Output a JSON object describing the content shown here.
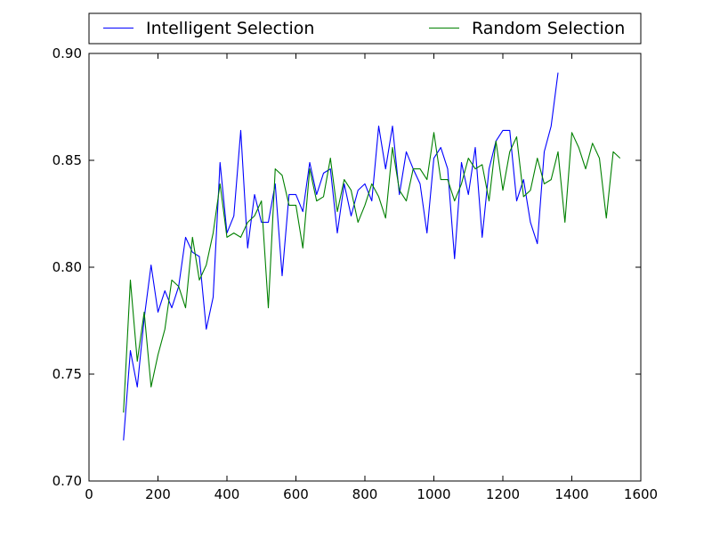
{
  "chart_data": {
    "type": "line",
    "title": "",
    "xlabel": "",
    "ylabel": "",
    "xlim": [
      0,
      1600
    ],
    "ylim": [
      0.7,
      0.9
    ],
    "x_ticks": [
      0,
      200,
      400,
      600,
      800,
      1000,
      1200,
      1400,
      1600
    ],
    "y_ticks": [
      0.7,
      0.75,
      0.8,
      0.85,
      0.9
    ],
    "x_tick_labels": [
      "0",
      "200",
      "400",
      "600",
      "800",
      "1000",
      "1200",
      "1400",
      "1600"
    ],
    "y_tick_labels": [
      "0.70",
      "0.75",
      "0.80",
      "0.85",
      "0.90"
    ],
    "grid": false,
    "legend_position": "top-outside",
    "series": [
      {
        "name": "Intelligent Selection",
        "color": "#0000ff",
        "x": [
          100,
          120,
          140,
          160,
          180,
          200,
          220,
          240,
          260,
          280,
          300,
          320,
          340,
          360,
          380,
          400,
          420,
          440,
          460,
          480,
          500,
          520,
          540,
          560,
          580,
          600,
          620,
          640,
          660,
          680,
          700,
          720,
          740,
          760,
          780,
          800,
          820,
          840,
          860,
          880,
          900,
          920,
          940,
          960,
          980,
          1000,
          1020,
          1040,
          1060,
          1080,
          1100,
          1120,
          1140,
          1160,
          1180,
          1200,
          1220,
          1240,
          1260,
          1280,
          1300,
          1320,
          1340,
          1360
        ],
        "y": [
          0.719,
          0.761,
          0.744,
          0.776,
          0.801,
          0.779,
          0.789,
          0.781,
          0.791,
          0.814,
          0.807,
          0.805,
          0.771,
          0.786,
          0.849,
          0.816,
          0.824,
          0.864,
          0.809,
          0.834,
          0.821,
          0.821,
          0.839,
          0.796,
          0.834,
          0.834,
          0.826,
          0.849,
          0.834,
          0.844,
          0.846,
          0.816,
          0.839,
          0.824,
          0.836,
          0.839,
          0.831,
          0.866,
          0.846,
          0.866,
          0.834,
          0.854,
          0.846,
          0.839,
          0.816,
          0.851,
          0.856,
          0.846,
          0.804,
          0.849,
          0.834,
          0.856,
          0.814,
          0.846,
          0.859,
          0.864,
          0.864,
          0.831,
          0.841,
          0.821,
          0.811,
          0.854,
          0.866,
          0.891
        ]
      },
      {
        "name": "Random Selection",
        "color": "#008000",
        "x": [
          100,
          120,
          140,
          160,
          180,
          200,
          220,
          240,
          260,
          280,
          300,
          320,
          340,
          360,
          380,
          400,
          420,
          440,
          460,
          480,
          500,
          520,
          540,
          560,
          580,
          600,
          620,
          640,
          660,
          680,
          700,
          720,
          740,
          760,
          780,
          800,
          820,
          840,
          860,
          880,
          900,
          920,
          940,
          960,
          980,
          1000,
          1020,
          1040,
          1060,
          1080,
          1100,
          1120,
          1140,
          1160,
          1180,
          1200,
          1220,
          1240,
          1260,
          1280,
          1300,
          1320,
          1340,
          1360,
          1380,
          1400,
          1420,
          1440,
          1460,
          1480,
          1500,
          1520,
          1540
        ],
        "y": [
          0.732,
          0.794,
          0.756,
          0.779,
          0.744,
          0.759,
          0.771,
          0.794,
          0.791,
          0.781,
          0.814,
          0.794,
          0.801,
          0.816,
          0.839,
          0.814,
          0.816,
          0.814,
          0.821,
          0.824,
          0.831,
          0.781,
          0.846,
          0.843,
          0.829,
          0.829,
          0.809,
          0.846,
          0.831,
          0.833,
          0.851,
          0.826,
          0.841,
          0.836,
          0.821,
          0.829,
          0.839,
          0.833,
          0.823,
          0.856,
          0.836,
          0.831,
          0.846,
          0.846,
          0.841,
          0.863,
          0.841,
          0.841,
          0.831,
          0.839,
          0.851,
          0.846,
          0.848,
          0.831,
          0.859,
          0.836,
          0.854,
          0.861,
          0.833,
          0.836,
          0.851,
          0.839,
          0.841,
          0.854,
          0.821,
          0.863,
          0.856,
          0.846,
          0.858,
          0.851,
          0.823,
          0.854,
          0.851
        ]
      }
    ]
  }
}
